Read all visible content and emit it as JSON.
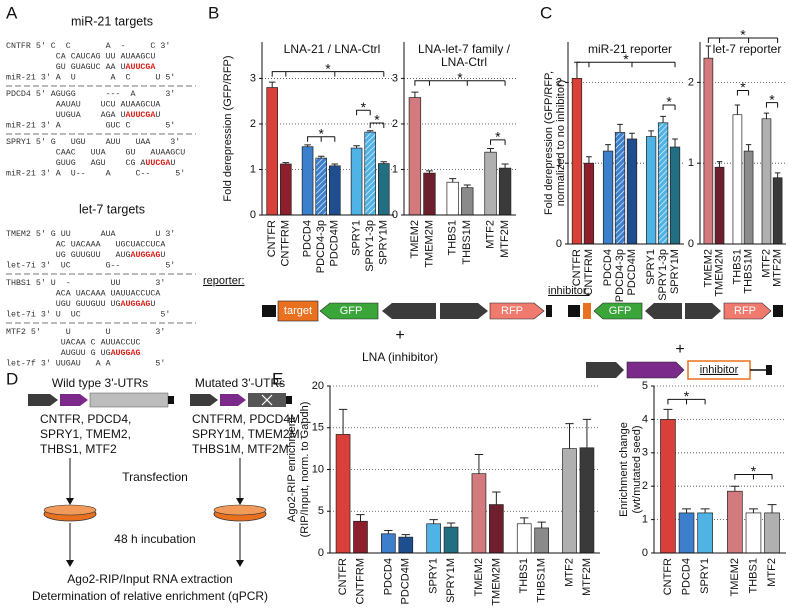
{
  "panel_labels": [
    "A",
    "B",
    "C",
    "D",
    "E"
  ],
  "sequence_groups": [
    {
      "title": "miR-21 targets",
      "blocks": [
        [
          [
            "CNTFR 5' C  C       A  -     C 3'"
          ],
          [
            "          CA CAUCAG UU AUAAGCU"
          ],
          [
            "          GU GUAGUC AA U",
            "AUUCGA"
          ],
          [
            "miR-21 3' A  U       A  C     U 5'"
          ]
        ],
        [
          [
            "PDCD4 5' AGUGG      ---  A      3'"
          ],
          [
            "          AAUAU    UCU AUAAGCUA"
          ],
          [
            "          UUGUA    AGA U",
            "AUUCGA",
            "U"
          ],
          [
            "miR-21 3' A         GUC C       5'"
          ]
        ],
        [
          [
            "SPRY1 5' G   UGU    AUU   UAA    3'"
          ],
          [
            "          CAAC   UUA    GU   AUAAGCU"
          ],
          [
            "          GUUG   AGU    CG A",
            "UUCGA",
            "U"
          ],
          [
            "miR-21 3' A  U--    A     C--     5'"
          ]
        ]
      ]
    },
    {
      "title": "let-7 targets",
      "blocks": [
        [
          [
            "TMEM2 5' G UU      AUA        U 3'"
          ],
          [
            "          AC UACAAA   UGCUACCUCA"
          ],
          [
            "          UG GUUGUU   AUG",
            "AUGGAG",
            "U"
          ],
          [
            "let-7i 3'  UC       G--         5'"
          ]
        ],
        [
          [
            "THBS1 5' U  -        UU       3'"
          ],
          [
            "          ACA UACAAA UAUUACCUCA"
          ],
          [
            "          UGU GUUGUU UG",
            "AUGGAG",
            "U"
          ],
          [
            "let-7i 3' U  UC                5'"
          ]
        ],
        [
          [
            "MTF2 5'     U       U         3'"
          ],
          [
            "           UACAA C AUUACCUC"
          ],
          [
            "           AUGUU G UG",
            "AUGGAG"
          ],
          [
            "let-7f 3' UUGAU   A A         5'"
          ]
        ]
      ]
    }
  ],
  "diagrams": {
    "target": "target",
    "gfp": "GFP",
    "rfp": "RFP",
    "plus": "+",
    "lna": "LNA (inhibitor)",
    "inhibitor": "inhibitor",
    "wild_type": "Wild type 3'-UTRs",
    "mutated": "Mutated 3'-UTRs",
    "wild_type_genes": [
      "CNTFR, PDCD4,",
      "SPRY1, TMEM2,",
      "THBS1, MTF2"
    ],
    "mutated_genes": [
      "CNTFRM, PDCD4M,",
      "SPRY1M, TMEM2M,",
      "THBS1M, MTF2M"
    ],
    "transfection": "Transfection",
    "incubation": "48 h incubation",
    "extraction": "Ago2-RIP/Input RNA extraction",
    "determination": "Determination of relative enrichment (qPCR)"
  },
  "chart_data": [
    {
      "type": "bar",
      "title": [
        "LNA-21 / LNA-Ctrl"
      ],
      "y_label": [
        "Fold derepression (GFP/RFP)"
      ],
      "x_label": "reporter:",
      "categories": [
        "CNTFR",
        "CNTFRM",
        "PDCD4",
        "PDCD4-3p",
        "PDCD4M",
        "SPRY1",
        "SPRY1-3p",
        "SPRY1M"
      ],
      "values": [
        2.8,
        1.12,
        1.5,
        1.25,
        1.08,
        1.47,
        1.82,
        1.13
      ],
      "errors": [
        0.12,
        0.03,
        0.04,
        0.04,
        0.04,
        0.05,
        0.03,
        0.04
      ],
      "colors": [
        "#d9403a",
        "#8e1f2c",
        "#3c7fcc",
        "#3c7fcc",
        "#1f4e8f",
        "#4fb3e6",
        "#4fb3e6",
        "#236f82"
      ],
      "hatched": [
        false,
        false,
        false,
        true,
        false,
        false,
        true,
        false
      ],
      "ylim": [
        0,
        3.8
      ],
      "yticks": [
        0,
        1,
        2,
        3
      ],
      "grid": true,
      "annotations": [
        "*",
        "*",
        "*",
        "*"
      ]
    },
    {
      "type": "bar",
      "title": [
        "LNA-let-7 family /",
        "LNA-Ctrl"
      ],
      "categories": [
        "TMEM2",
        "TMEM2M",
        "THBS1",
        "THBS1M",
        "MTF2",
        "MTF2M"
      ],
      "values": [
        2.58,
        0.92,
        0.72,
        0.6,
        1.38,
        1.03
      ],
      "errors": [
        0.12,
        0.05,
        0.08,
        0.06,
        0.08,
        0.09
      ],
      "colors": [
        "#d27a7e",
        "#6e1f2e",
        "#ffffff",
        "#8a8a8a",
        "#b0b0b0",
        "#3a3a3a"
      ],
      "hatched": [
        false,
        false,
        false,
        false,
        false,
        false
      ],
      "ylim": [
        0,
        3.8
      ],
      "yticks": [
        0,
        1,
        2,
        3
      ],
      "grid": true,
      "annotations": [
        "*",
        "*"
      ]
    },
    {
      "type": "bar",
      "title": [
        "miR-21 reporter"
      ],
      "y_label": [
        "Fold derepression (GFP/RFP,",
        "normalized to no inhibitor)"
      ],
      "x_label": "inhibitor:",
      "categories": [
        "CNTFR",
        "CNTFRM",
        "PDCD4",
        "PDCD4-3p",
        "PDCD4M",
        "SPRY1",
        "SPRY1-3p",
        "SPRY1M"
      ],
      "values": [
        2.05,
        1.0,
        1.15,
        1.38,
        1.3,
        1.33,
        1.5,
        1.2
      ],
      "errors": [
        0.2,
        0.08,
        0.08,
        0.1,
        0.07,
        0.07,
        0.08,
        0.1
      ],
      "colors": [
        "#d9403a",
        "#8e1f2c",
        "#3c7fcc",
        "#3c7fcc",
        "#1f4e8f",
        "#4fb3e6",
        "#4fb3e6",
        "#236f82"
      ],
      "hatched": [
        false,
        false,
        false,
        true,
        false,
        false,
        true,
        false
      ],
      "ylim": [
        0,
        2.5
      ],
      "yticks": [
        0,
        1,
        2
      ],
      "grid": true,
      "annotations": [
        "*",
        "*"
      ]
    },
    {
      "type": "bar",
      "title": [
        "let-7 reporter"
      ],
      "categories": [
        "TMEM2",
        "TMEM2M",
        "THBS1",
        "THBS1M",
        "MTF2",
        "MTF2M"
      ],
      "values": [
        2.3,
        0.95,
        1.6,
        1.15,
        1.55,
        0.82
      ],
      "errors": [
        0.15,
        0.07,
        0.12,
        0.08,
        0.07,
        0.06
      ],
      "colors": [
        "#d27a7e",
        "#6e1f2e",
        "#ffffff",
        "#8a8a8a",
        "#b0b0b0",
        "#3a3a3a"
      ],
      "hatched": [
        false,
        false,
        false,
        false,
        false,
        false
      ],
      "ylim": [
        0,
        2.5
      ],
      "yticks": [
        0,
        1,
        2
      ],
      "grid": true,
      "annotations": [
        "*",
        "*",
        "*"
      ]
    },
    {
      "type": "bar",
      "y_label": [
        "Ago2-RIP enrichment",
        "(RIP/Input, norm. to Gapdh)"
      ],
      "categories": [
        "CNTFR",
        "CNTFRM",
        "PDCD4",
        "PDCD4M",
        "SPRY1",
        "SPRY1M",
        "TMEM2",
        "TMEM2M",
        "THBS1",
        "THBS1M",
        "MTF2",
        "MTF2M"
      ],
      "values": [
        14.2,
        3.8,
        2.3,
        1.9,
        3.5,
        3.1,
        9.5,
        5.8,
        3.5,
        3.0,
        12.5,
        12.6
      ],
      "errors": [
        3.0,
        0.8,
        0.4,
        0.3,
        0.5,
        0.5,
        2.3,
        1.5,
        0.7,
        0.7,
        3.0,
        3.4
      ],
      "colors": [
        "#d9403a",
        "#8e1f2c",
        "#3c7fcc",
        "#1f4e8f",
        "#4fb3e6",
        "#236f82",
        "#d27a7e",
        "#6e1f2e",
        "#ffffff",
        "#8a8a8a",
        "#b0b0b0",
        "#3a3a3a"
      ],
      "hatched": [
        false,
        false,
        false,
        false,
        false,
        false,
        false,
        false,
        false,
        false,
        false,
        false
      ],
      "ylim": [
        0,
        20
      ],
      "yticks": [
        0,
        5,
        10,
        15,
        20
      ],
      "grid": true,
      "annotations": []
    },
    {
      "type": "bar",
      "y_label": [
        "Enrichment change",
        "(wt/mutated seed)"
      ],
      "categories": [
        "CNTFR",
        "PDCD4",
        "SPRY1",
        "TMEM2",
        "THBS1",
        "MTF2"
      ],
      "values": [
        4.0,
        1.2,
        1.2,
        1.85,
        1.2,
        1.2
      ],
      "errors": [
        0.3,
        0.12,
        0.12,
        0.15,
        0.12,
        0.25
      ],
      "colors": [
        "#d9403a",
        "#3c7fcc",
        "#4fb3e6",
        "#d27a7e",
        "#ffffff",
        "#b0b0b0"
      ],
      "hatched": [
        false,
        false,
        false,
        false,
        false,
        false
      ],
      "ylim": [
        0,
        5
      ],
      "yticks": [
        0,
        1,
        2,
        3,
        4,
        5
      ],
      "grid": true,
      "annotations": [
        "*",
        "*"
      ]
    }
  ]
}
